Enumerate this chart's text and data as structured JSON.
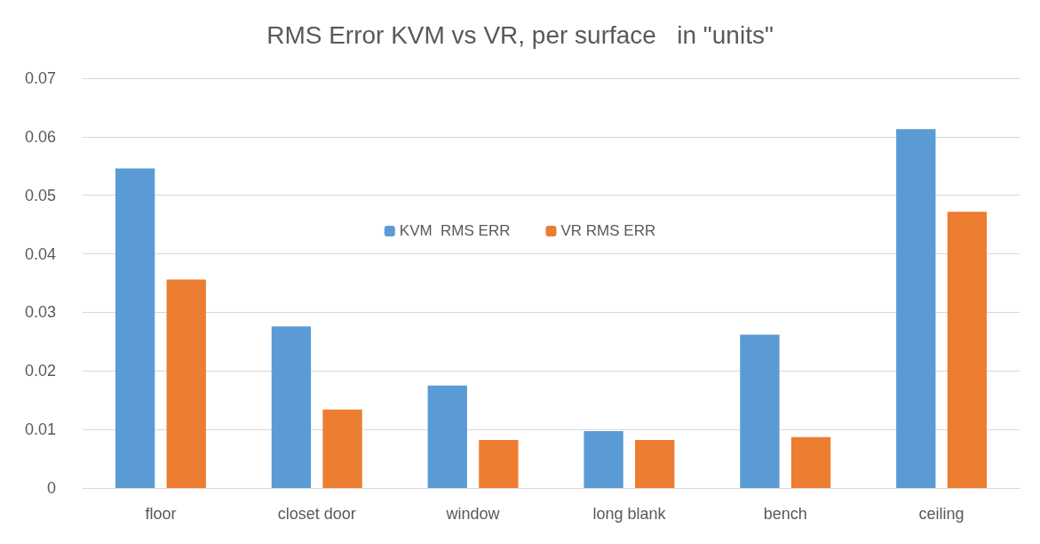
{
  "chart_data": {
    "type": "bar",
    "title": "RMS Error KVM vs VR, per surface   in \"units\"",
    "categories": [
      "floor",
      "closet door",
      "window",
      "long blank",
      "bench",
      "ceiling"
    ],
    "series": [
      {
        "name": "KVM  RMS ERR",
        "color": "#5b9bd5",
        "values": [
          0.0546,
          0.0276,
          0.0175,
          0.0097,
          0.0262,
          0.0613
        ]
      },
      {
        "name": "VR RMS ERR",
        "color": "#ed7d31",
        "values": [
          0.0356,
          0.0134,
          0.0082,
          0.0082,
          0.0087,
          0.0472
        ]
      }
    ],
    "ylim": [
      0,
      0.07
    ],
    "yticks": [
      0,
      0.01,
      0.02,
      0.03,
      0.04,
      0.05,
      0.06,
      0.07
    ],
    "grid": "y",
    "legend": "center"
  }
}
